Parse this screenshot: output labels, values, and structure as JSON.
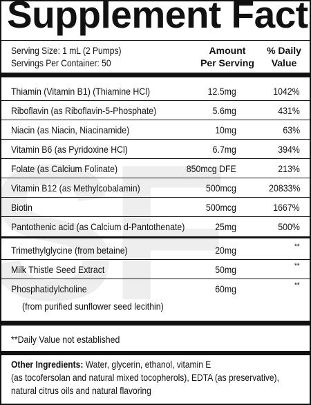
{
  "title": "Supplement Facts",
  "serving": {
    "size": "Serving Size: 1 mL (2 Pumps)",
    "per_container": "Servings Per Container: 50"
  },
  "columns": {
    "amount_line1": "Amount",
    "amount_line2": "Per Serving",
    "dv_line1": "% Daily",
    "dv_line2": "Value"
  },
  "vitamins": [
    {
      "name": "Thiamin (Vitamin B1) (Thiamine HCl)",
      "amount": "12.5mg",
      "dv": "1042%"
    },
    {
      "name": "Riboflavin (as Riboflavin-5-Phosphate)",
      "amount": "5.6mg",
      "dv": "431%"
    },
    {
      "name": "Niacin (as Niacin, Niacinamide)",
      "amount": "10mg",
      "dv": "63%"
    },
    {
      "name": "Vitamin B6 (as Pyridoxine HCl)",
      "amount": "6.7mg",
      "dv": "394%"
    },
    {
      "name": "Folate (as Calcium Folinate)",
      "amount": "850mcg DFE",
      "dv": "213%"
    },
    {
      "name": "Vitamin B12 (as Methylcobalamin)",
      "amount": "500mcg",
      "dv": "20833%"
    },
    {
      "name": "Biotin",
      "amount": "500mcg",
      "dv": "1667%"
    },
    {
      "name": "Pantothenic acid (as Calcium d-Pantothenate)",
      "amount": "25mg",
      "dv": "500%"
    }
  ],
  "other_nutrients": [
    {
      "name": "Trimethylglycine (from betaine)",
      "amount": "20mg",
      "dv": "**"
    },
    {
      "name": "Milk Thistle Seed Extract",
      "amount": "50mg",
      "dv": "**"
    },
    {
      "name": "Phosphatidylcholine",
      "amount": "60mg",
      "dv": "**",
      "subline": "(from purified sunflower seed lecithin)"
    }
  ],
  "footnote": "**Daily Value not established",
  "other_ingredients": {
    "label": "Other Ingredients:",
    "line1": "Water, glycerin, ethanol, vitamin E",
    "line2": "(as tocofersolan and natural mixed tocopherols), EDTA (as preservative),",
    "line3": "natural citrus oils and natural flavoring"
  }
}
